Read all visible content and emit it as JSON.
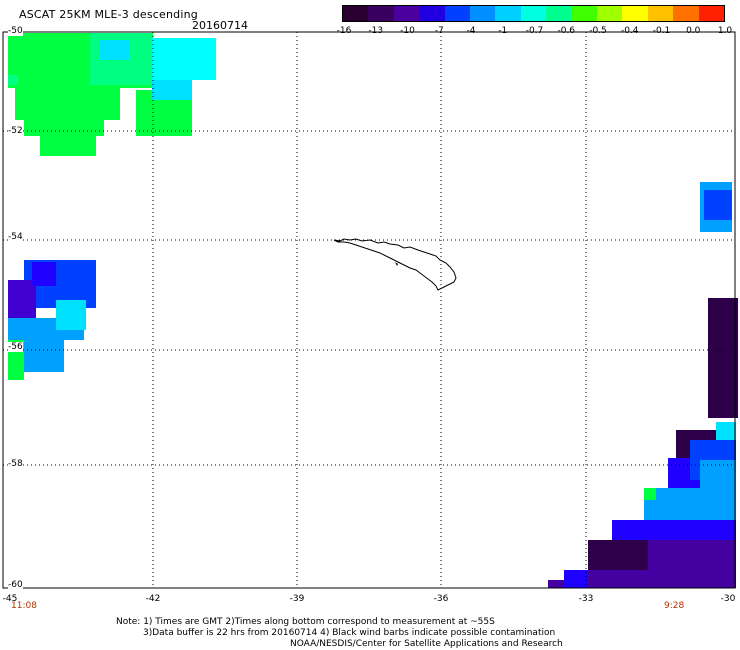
{
  "title": "ASCAT 25KM MLE-3 descending",
  "date": "20160714",
  "colorbar": {
    "colors": [
      "#2a0030",
      "#3a0060",
      "#4b00a0",
      "#2000e0",
      "#0040ff",
      "#0090ff",
      "#00d0ff",
      "#00ffe0",
      "#00ff90",
      "#40ff00",
      "#a0ff00",
      "#ffff00",
      "#ffc000",
      "#ff7000",
      "#ff2000"
    ],
    "labels": [
      "-16",
      "-13",
      "-10",
      "-7",
      "-4",
      "-1",
      "-0.7",
      "-0.6",
      "-0.5",
      "-0.4",
      "-0.1",
      "0.0",
      "1.0"
    ]
  },
  "map": {
    "latitudes": [
      "-50",
      "-52",
      "-54",
      "-56",
      "-58",
      "-60"
    ],
    "longitudes": [
      "-45",
      "-42",
      "-39",
      "-36",
      "-33",
      "-30"
    ],
    "times": {
      "left": "11:08",
      "right": "9:28"
    },
    "swath_colors": {
      "green": "#00ff40",
      "light_green": "#00ff80",
      "cyan": "#00ffff",
      "aqua": "#00e0ff",
      "sky": "#00a0ff",
      "blue": "#0040ff",
      "deep_blue": "#2000ff",
      "indigo": "#4000d0",
      "purple": "#4400a0",
      "dark_purple": "#2e004a"
    }
  },
  "notes": {
    "line1": "Note: 1) Times are GMT 2)Times along bottom correspond to measurement at ~55S",
    "line2": "3)Data buffer is 22 hrs from 20160714 4) Black wind barbs indicate possible contamination",
    "line3": "NOAA/NESDIS/Center for Satellite Applications and Research"
  }
}
